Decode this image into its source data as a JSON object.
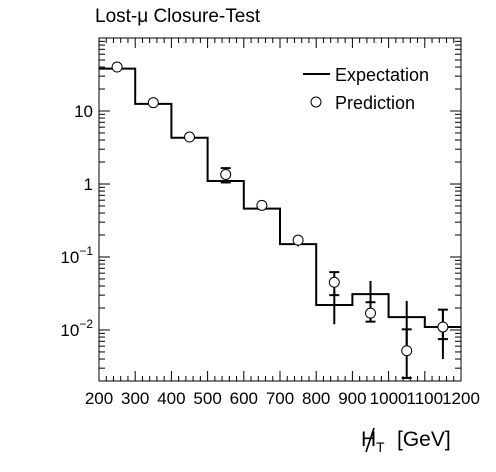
{
  "chart_data": {
    "type": "histogram",
    "title": "Lost-μ Closure-Test",
    "xlabel": "H̸T [GeV]",
    "xlabel_main": "H",
    "xlabel_sub": "T",
    "xlabel_unit": "[GeV]",
    "ylabel": "",
    "xlim": [
      200,
      1200
    ],
    "ylim": [
      0.002,
      100
    ],
    "y_scale": "log",
    "x_ticks": [
      200,
      300,
      400,
      500,
      600,
      700,
      800,
      900,
      1000,
      1100,
      1200
    ],
    "x_tick_labels": [
      "200",
      "300",
      "400",
      "500",
      "600",
      "700",
      "800",
      "900",
      "1000",
      "1100",
      "1200"
    ],
    "y_tick_labels": [
      {
        "value": 10,
        "base": "10",
        "exp": ""
      },
      {
        "value": 1,
        "base": "1",
        "exp": ""
      },
      {
        "value": 0.1,
        "base": "10",
        "exp": "−1"
      },
      {
        "value": 0.01,
        "base": "10",
        "exp": "−2"
      }
    ],
    "legend_position": "top-right",
    "bin_edges": [
      200,
      300,
      400,
      500,
      600,
      700,
      800,
      900,
      1000,
      1100,
      1200
    ],
    "series": [
      {
        "name": "Expectation",
        "style": "step",
        "color": "#000000",
        "values": [
          38,
          12.5,
          4.3,
          1.1,
          0.46,
          0.15,
          0.022,
          0.031,
          0.015,
          0.011
        ],
        "err_lo": [
          0,
          0,
          0,
          0,
          0,
          0,
          0.01,
          0.012,
          0.009,
          0.007
        ],
        "err_hi": [
          0,
          0,
          0,
          0,
          0,
          0,
          0.012,
          0.016,
          0.01,
          0.008
        ]
      },
      {
        "name": "Prediction",
        "style": "open-circle",
        "color": "#000000",
        "x": [
          250,
          350,
          450,
          550,
          650,
          750,
          850,
          950,
          1050,
          1150
        ],
        "values": [
          40,
          13,
          4.4,
          1.35,
          0.51,
          0.17,
          0.045,
          0.017,
          0.0052,
          0.011
        ],
        "err_lo": [
          2,
          1,
          0.4,
          0.3,
          0.06,
          0.03,
          0.015,
          0.004,
          0.003,
          0.0035
        ],
        "err_hi": [
          2,
          1,
          0.4,
          0.3,
          0.06,
          0.03,
          0.017,
          0.007,
          0.005,
          0.008
        ]
      }
    ]
  }
}
